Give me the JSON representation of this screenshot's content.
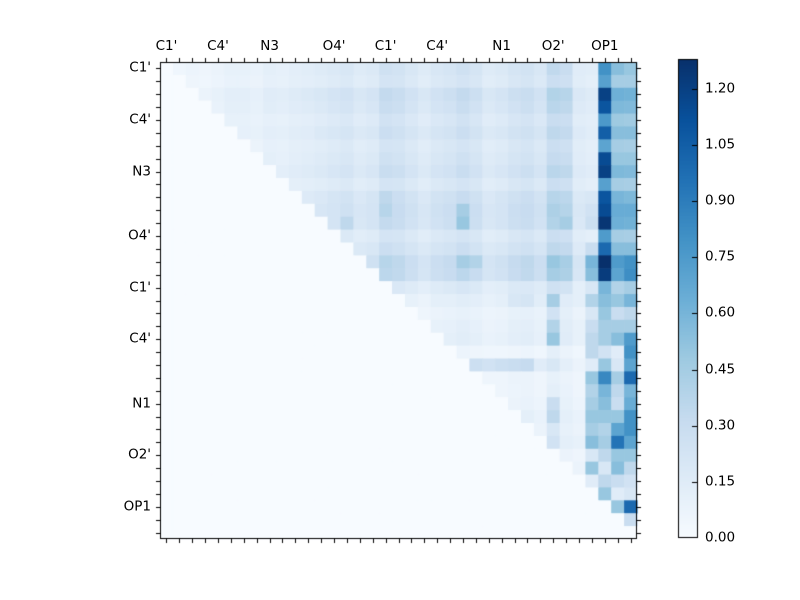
{
  "figure": {
    "background": "#ffffff",
    "type_note": "upper-triangular pairwise heatmap with colorbar"
  },
  "chart_data": {
    "type": "heatmap",
    "matrix_size": 37,
    "x_tick_labels": [
      "C1'",
      "C4'",
      "N3",
      "O4'",
      "C1'",
      "C4'",
      "N1",
      "O2'",
      "OP1"
    ],
    "y_tick_labels": [
      "C1'",
      "C4'",
      "N3",
      "O4'",
      "C1'",
      "C4'",
      "N1",
      "O2'",
      "OP1"
    ],
    "label_indices": [
      0,
      4,
      8,
      13,
      17,
      21,
      26,
      30,
      34
    ],
    "vmin": 0.0,
    "vmax": 1.28,
    "colormap": {
      "name": "Blues",
      "anchors": [
        {
          "t": 0.0,
          "color": "#f7fbff"
        },
        {
          "t": 0.125,
          "color": "#deebf7"
        },
        {
          "t": 0.25,
          "color": "#c6dbef"
        },
        {
          "t": 0.375,
          "color": "#9ecae1"
        },
        {
          "t": 0.5,
          "color": "#6baed6"
        },
        {
          "t": 0.625,
          "color": "#4292c6"
        },
        {
          "t": 0.75,
          "color": "#2171b5"
        },
        {
          "t": 0.875,
          "color": "#08519c"
        },
        {
          "t": 1.0,
          "color": "#08306b"
        }
      ]
    },
    "colorbar": {
      "tick_labels": [
        "0.00",
        "0.15",
        "0.30",
        "0.45",
        "0.60",
        "0.75",
        "0.90",
        "1.05",
        "1.20"
      ],
      "tick_values": [
        0.0,
        0.15,
        0.3,
        0.45,
        0.6,
        0.75,
        0.9,
        1.05,
        1.2
      ]
    },
    "matrix": [
      [
        0,
        0.05,
        0.07,
        0.06,
        0.08,
        0.1,
        0.1,
        0.09,
        0.12,
        0.11,
        0.13,
        0.14,
        0.16,
        0.18,
        0.2,
        0.16,
        0.18,
        0.26,
        0.24,
        0.2,
        0.16,
        0.2,
        0.22,
        0.26,
        0.22,
        0.16,
        0.18,
        0.22,
        0.24,
        0.2,
        0.34,
        0.3,
        0.15,
        0.14,
        0.8,
        0.55,
        0.5
      ],
      [
        0,
        0,
        0.06,
        0.05,
        0.07,
        0.09,
        0.09,
        0.08,
        0.11,
        0.1,
        0.12,
        0.13,
        0.14,
        0.16,
        0.18,
        0.14,
        0.16,
        0.23,
        0.22,
        0.18,
        0.14,
        0.18,
        0.2,
        0.23,
        0.2,
        0.14,
        0.16,
        0.2,
        0.22,
        0.18,
        0.29,
        0.27,
        0.14,
        0.12,
        0.72,
        0.45,
        0.45
      ],
      [
        0,
        0,
        0,
        0.08,
        0.1,
        0.13,
        0.13,
        0.11,
        0.15,
        0.14,
        0.16,
        0.18,
        0.2,
        0.23,
        0.25,
        0.2,
        0.23,
        0.33,
        0.3,
        0.25,
        0.2,
        0.25,
        0.28,
        0.33,
        0.28,
        0.2,
        0.23,
        0.28,
        0.3,
        0.25,
        0.4,
        0.38,
        0.19,
        0.16,
        1.2,
        0.63,
        0.62
      ],
      [
        0,
        0,
        0,
        0,
        0.09,
        0.12,
        0.12,
        0.1,
        0.14,
        0.13,
        0.15,
        0.16,
        0.18,
        0.21,
        0.23,
        0.18,
        0.21,
        0.3,
        0.28,
        0.23,
        0.18,
        0.23,
        0.25,
        0.3,
        0.25,
        0.18,
        0.21,
        0.25,
        0.28,
        0.23,
        0.37,
        0.35,
        0.17,
        0.15,
        1.1,
        0.58,
        0.57
      ],
      [
        0,
        0,
        0,
        0,
        0,
        0.1,
        0.1,
        0.09,
        0.11,
        0.1,
        0.12,
        0.13,
        0.15,
        0.17,
        0.19,
        0.15,
        0.17,
        0.25,
        0.23,
        0.19,
        0.15,
        0.19,
        0.21,
        0.25,
        0.21,
        0.15,
        0.17,
        0.21,
        0.23,
        0.19,
        0.3,
        0.29,
        0.14,
        0.13,
        0.76,
        0.48,
        0.47
      ],
      [
        0,
        0,
        0,
        0,
        0,
        0,
        0.11,
        0.1,
        0.13,
        0.12,
        0.14,
        0.15,
        0.18,
        0.2,
        0.22,
        0.18,
        0.2,
        0.29,
        0.26,
        0.22,
        0.18,
        0.22,
        0.24,
        0.29,
        0.24,
        0.18,
        0.2,
        0.24,
        0.26,
        0.22,
        0.35,
        0.33,
        0.17,
        0.14,
        1.05,
        0.55,
        0.55
      ],
      [
        0,
        0,
        0,
        0,
        0,
        0,
        0,
        0.08,
        0.11,
        0.1,
        0.12,
        0.13,
        0.14,
        0.16,
        0.18,
        0.14,
        0.16,
        0.23,
        0.22,
        0.18,
        0.14,
        0.18,
        0.2,
        0.23,
        0.2,
        0.14,
        0.16,
        0.2,
        0.22,
        0.18,
        0.29,
        0.27,
        0.14,
        0.12,
        0.7,
        0.45,
        0.44
      ],
      [
        0,
        0,
        0,
        0,
        0,
        0,
        0,
        0,
        0.12,
        0.11,
        0.13,
        0.14,
        0.16,
        0.18,
        0.2,
        0.16,
        0.18,
        0.26,
        0.24,
        0.2,
        0.16,
        0.2,
        0.22,
        0.26,
        0.22,
        0.16,
        0.18,
        0.22,
        0.24,
        0.2,
        0.32,
        0.3,
        0.15,
        0.13,
        1.15,
        0.5,
        0.5
      ],
      [
        0,
        0,
        0,
        0,
        0,
        0,
        0,
        0,
        0,
        0.13,
        0.15,
        0.16,
        0.18,
        0.21,
        0.23,
        0.18,
        0.21,
        0.3,
        0.28,
        0.23,
        0.18,
        0.23,
        0.25,
        0.3,
        0.25,
        0.18,
        0.21,
        0.25,
        0.28,
        0.23,
        0.37,
        0.35,
        0.17,
        0.15,
        1.2,
        0.58,
        0.57
      ],
      [
        0,
        0,
        0,
        0,
        0,
        0,
        0,
        0,
        0,
        0,
        0.12,
        0.13,
        0.14,
        0.16,
        0.18,
        0.14,
        0.16,
        0.23,
        0.22,
        0.18,
        0.14,
        0.18,
        0.2,
        0.23,
        0.2,
        0.14,
        0.16,
        0.2,
        0.22,
        0.18,
        0.29,
        0.27,
        0.14,
        0.12,
        0.72,
        0.45,
        0.44
      ],
      [
        0,
        0,
        0,
        0,
        0,
        0,
        0,
        0,
        0,
        0,
        0,
        0.17,
        0.19,
        0.22,
        0.24,
        0.19,
        0.22,
        0.35,
        0.29,
        0.24,
        0.19,
        0.24,
        0.26,
        0.31,
        0.26,
        0.19,
        0.22,
        0.26,
        0.29,
        0.24,
        0.38,
        0.36,
        0.18,
        0.2,
        1.1,
        0.6,
        0.58
      ],
      [
        0,
        0,
        0,
        0,
        0,
        0,
        0,
        0,
        0,
        0,
        0,
        0,
        0.21,
        0.23,
        0.26,
        0.21,
        0.23,
        0.38,
        0.31,
        0.26,
        0.21,
        0.26,
        0.29,
        0.45,
        0.29,
        0.21,
        0.23,
        0.29,
        0.31,
        0.26,
        0.42,
        0.39,
        0.2,
        0.25,
        1.15,
        0.65,
        0.65
      ],
      [
        0,
        0,
        0,
        0,
        0,
        0,
        0,
        0,
        0,
        0,
        0,
        0,
        0,
        0.23,
        0.35,
        0.2,
        0.23,
        0.33,
        0.3,
        0.25,
        0.2,
        0.25,
        0.28,
        0.5,
        0.28,
        0.2,
        0.23,
        0.28,
        0.3,
        0.25,
        0.4,
        0.45,
        0.19,
        0.28,
        1.25,
        0.63,
        0.62
      ],
      [
        0,
        0,
        0,
        0,
        0,
        0,
        0,
        0,
        0,
        0,
        0,
        0,
        0,
        0,
        0.18,
        0.14,
        0.16,
        0.23,
        0.22,
        0.18,
        0.14,
        0.18,
        0.2,
        0.23,
        0.2,
        0.14,
        0.16,
        0.2,
        0.22,
        0.18,
        0.29,
        0.27,
        0.14,
        0.12,
        0.75,
        0.45,
        0.44
      ],
      [
        0,
        0,
        0,
        0,
        0,
        0,
        0,
        0,
        0,
        0,
        0,
        0,
        0,
        0,
        0,
        0.18,
        0.2,
        0.29,
        0.26,
        0.22,
        0.18,
        0.22,
        0.24,
        0.29,
        0.24,
        0.18,
        0.2,
        0.24,
        0.26,
        0.22,
        0.35,
        0.33,
        0.17,
        0.3,
        1.0,
        0.55,
        0.55
      ],
      [
        0,
        0,
        0,
        0,
        0,
        0,
        0,
        0,
        0,
        0,
        0,
        0,
        0,
        0,
        0,
        0,
        0.26,
        0.38,
        0.35,
        0.29,
        0.23,
        0.29,
        0.32,
        0.45,
        0.4,
        0.23,
        0.26,
        0.32,
        0.35,
        0.29,
        0.5,
        0.44,
        0.22,
        0.6,
        1.29,
        0.75,
        0.8
      ],
      [
        0,
        0,
        0,
        0,
        0,
        0,
        0,
        0,
        0,
        0,
        0,
        0,
        0,
        0,
        0,
        0,
        0,
        0.36,
        0.34,
        0.28,
        0.22,
        0.28,
        0.31,
        0.36,
        0.31,
        0.22,
        0.25,
        0.31,
        0.34,
        0.28,
        0.45,
        0.42,
        0.21,
        0.55,
        1.22,
        0.7,
        0.82
      ],
      [
        0,
        0,
        0,
        0,
        0,
        0,
        0,
        0,
        0,
        0,
        0,
        0,
        0,
        0,
        0,
        0,
        0,
        0,
        0.19,
        0.16,
        0.13,
        0.16,
        0.18,
        0.21,
        0.18,
        0.13,
        0.14,
        0.18,
        0.19,
        0.16,
        0.26,
        0.24,
        0.12,
        0.2,
        0.6,
        0.4,
        0.45
      ],
      [
        0,
        0,
        0,
        0,
        0,
        0,
        0,
        0,
        0,
        0,
        0,
        0,
        0,
        0,
        0,
        0,
        0,
        0,
        0,
        0.1,
        0.08,
        0.12,
        0.12,
        0.14,
        0.13,
        0.1,
        0.12,
        0.2,
        0.22,
        0.14,
        0.45,
        0.15,
        0.12,
        0.4,
        0.55,
        0.5,
        0.6
      ],
      [
        0,
        0,
        0,
        0,
        0,
        0,
        0,
        0,
        0,
        0,
        0,
        0,
        0,
        0,
        0,
        0,
        0,
        0,
        0,
        0,
        0.06,
        0.08,
        0.09,
        0.1,
        0.09,
        0.07,
        0.08,
        0.1,
        0.11,
        0.09,
        0.25,
        0.12,
        0.08,
        0.2,
        0.5,
        0.3,
        0.35
      ],
      [
        0,
        0,
        0,
        0,
        0,
        0,
        0,
        0,
        0,
        0,
        0,
        0,
        0,
        0,
        0,
        0,
        0,
        0,
        0,
        0,
        0,
        0.1,
        0.11,
        0.13,
        0.11,
        0.08,
        0.09,
        0.12,
        0.13,
        0.1,
        0.4,
        0.14,
        0.1,
        0.3,
        0.45,
        0.45,
        0.45
      ],
      [
        0,
        0,
        0,
        0,
        0,
        0,
        0,
        0,
        0,
        0,
        0,
        0,
        0,
        0,
        0,
        0,
        0,
        0,
        0,
        0,
        0,
        0,
        0.12,
        0.14,
        0.12,
        0.09,
        0.1,
        0.13,
        0.14,
        0.11,
        0.5,
        0.15,
        0.1,
        0.35,
        0.45,
        0.55,
        0.75
      ],
      [
        0,
        0,
        0,
        0,
        0,
        0,
        0,
        0,
        0,
        0,
        0,
        0,
        0,
        0,
        0,
        0,
        0,
        0,
        0,
        0,
        0,
        0,
        0,
        0.07,
        0.06,
        0.05,
        0.05,
        0.06,
        0.07,
        0.05,
        0.12,
        0.08,
        0.05,
        0.35,
        0.25,
        0.15,
        0.8
      ],
      [
        0,
        0,
        0,
        0,
        0,
        0,
        0,
        0,
        0,
        0,
        0,
        0,
        0,
        0,
        0,
        0,
        0,
        0,
        0,
        0,
        0,
        0,
        0,
        0,
        0.28,
        0.25,
        0.28,
        0.3,
        0.32,
        0.15,
        0.2,
        0.12,
        0.08,
        0.15,
        0.5,
        0.2,
        0.7
      ],
      [
        0,
        0,
        0,
        0,
        0,
        0,
        0,
        0,
        0,
        0,
        0,
        0,
        0,
        0,
        0,
        0,
        0,
        0,
        0,
        0,
        0,
        0,
        0,
        0,
        0,
        0.06,
        0.06,
        0.08,
        0.08,
        0.06,
        0.1,
        0.08,
        0.06,
        0.5,
        0.85,
        0.45,
        1.0
      ],
      [
        0,
        0,
        0,
        0,
        0,
        0,
        0,
        0,
        0,
        0,
        0,
        0,
        0,
        0,
        0,
        0,
        0,
        0,
        0,
        0,
        0,
        0,
        0,
        0,
        0,
        0,
        0.06,
        0.07,
        0.08,
        0.06,
        0.12,
        0.09,
        0.06,
        0.4,
        0.6,
        0.35,
        0.6
      ],
      [
        0,
        0,
        0,
        0,
        0,
        0,
        0,
        0,
        0,
        0,
        0,
        0,
        0,
        0,
        0,
        0,
        0,
        0,
        0,
        0,
        0,
        0,
        0,
        0,
        0,
        0,
        0,
        0.08,
        0.09,
        0.07,
        0.3,
        0.1,
        0.07,
        0.45,
        0.55,
        0.3,
        0.65
      ],
      [
        0,
        0,
        0,
        0,
        0,
        0,
        0,
        0,
        0,
        0,
        0,
        0,
        0,
        0,
        0,
        0,
        0,
        0,
        0,
        0,
        0,
        0,
        0,
        0,
        0,
        0,
        0,
        0,
        0.12,
        0.09,
        0.35,
        0.12,
        0.09,
        0.5,
        0.5,
        0.5,
        0.8
      ],
      [
        0,
        0,
        0,
        0,
        0,
        0,
        0,
        0,
        0,
        0,
        0,
        0,
        0,
        0,
        0,
        0,
        0,
        0,
        0,
        0,
        0,
        0,
        0,
        0,
        0,
        0,
        0,
        0,
        0,
        0.08,
        0.2,
        0.1,
        0.08,
        0.45,
        0.4,
        0.7,
        0.8
      ],
      [
        0,
        0,
        0,
        0,
        0,
        0,
        0,
        0,
        0,
        0,
        0,
        0,
        0,
        0,
        0,
        0,
        0,
        0,
        0,
        0,
        0,
        0,
        0,
        0,
        0,
        0,
        0,
        0,
        0,
        0,
        0.25,
        0.12,
        0.1,
        0.55,
        0.45,
        0.95,
        0.7
      ],
      [
        0,
        0,
        0,
        0,
        0,
        0,
        0,
        0,
        0,
        0,
        0,
        0,
        0,
        0,
        0,
        0,
        0,
        0,
        0,
        0,
        0,
        0,
        0,
        0,
        0,
        0,
        0,
        0,
        0,
        0,
        0,
        0.08,
        0.06,
        0.2,
        0.35,
        0.5,
        0.5
      ],
      [
        0,
        0,
        0,
        0,
        0,
        0,
        0,
        0,
        0,
        0,
        0,
        0,
        0,
        0,
        0,
        0,
        0,
        0,
        0,
        0,
        0,
        0,
        0,
        0,
        0,
        0,
        0,
        0,
        0,
        0,
        0,
        0,
        0.08,
        0.5,
        0.2,
        0.55,
        0.35
      ],
      [
        0,
        0,
        0,
        0,
        0,
        0,
        0,
        0,
        0,
        0,
        0,
        0,
        0,
        0,
        0,
        0,
        0,
        0,
        0,
        0,
        0,
        0,
        0,
        0,
        0,
        0,
        0,
        0,
        0,
        0,
        0,
        0,
        0,
        0.15,
        0.35,
        0.3,
        0.25
      ],
      [
        0,
        0,
        0,
        0,
        0,
        0,
        0,
        0,
        0,
        0,
        0,
        0,
        0,
        0,
        0,
        0,
        0,
        0,
        0,
        0,
        0,
        0,
        0,
        0,
        0,
        0,
        0,
        0,
        0,
        0,
        0,
        0,
        0,
        0,
        0.5,
        0.15,
        0.2
      ],
      [
        0,
        0,
        0,
        0,
        0,
        0,
        0,
        0,
        0,
        0,
        0,
        0,
        0,
        0,
        0,
        0,
        0,
        0,
        0,
        0,
        0,
        0,
        0,
        0,
        0,
        0,
        0,
        0,
        0,
        0,
        0,
        0,
        0,
        0,
        0,
        0.5,
        1.0
      ],
      [
        0,
        0,
        0,
        0,
        0,
        0,
        0,
        0,
        0,
        0,
        0,
        0,
        0,
        0,
        0,
        0,
        0,
        0,
        0,
        0,
        0,
        0,
        0,
        0,
        0,
        0,
        0,
        0,
        0,
        0,
        0,
        0,
        0,
        0,
        0,
        0,
        0.3
      ],
      [
        0,
        0,
        0,
        0,
        0,
        0,
        0,
        0,
        0,
        0,
        0,
        0,
        0,
        0,
        0,
        0,
        0,
        0,
        0,
        0,
        0,
        0,
        0,
        0,
        0,
        0,
        0,
        0,
        0,
        0,
        0,
        0,
        0,
        0,
        0,
        0,
        0
      ]
    ]
  }
}
